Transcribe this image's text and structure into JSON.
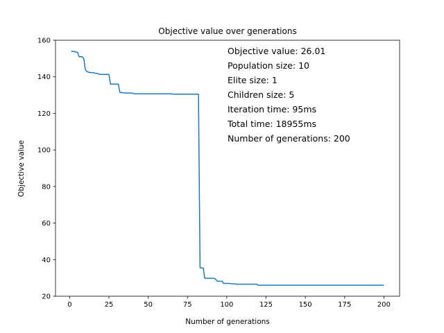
{
  "chart_data": {
    "type": "line",
    "title": "Objective value over generations",
    "xlabel": "Number of generations",
    "ylabel": "Objective value",
    "xlim": [
      -9,
      210
    ],
    "ylim": [
      20,
      160
    ],
    "xticks": [
      0,
      25,
      50,
      75,
      100,
      125,
      150,
      175,
      200
    ],
    "yticks": [
      20,
      40,
      60,
      80,
      100,
      120,
      140,
      160
    ],
    "grid": false,
    "series": [
      {
        "color": "#1f77b4",
        "points": [
          [
            1,
            153.9
          ],
          [
            3,
            153.9
          ],
          [
            4,
            153.5
          ],
          [
            5,
            153.5
          ],
          [
            6,
            151.0
          ],
          [
            8,
            151.0
          ],
          [
            9,
            150.0
          ],
          [
            10,
            144.0
          ],
          [
            11,
            142.8
          ],
          [
            13,
            142.3
          ],
          [
            15,
            142.3
          ],
          [
            16,
            142.0
          ],
          [
            18,
            141.8
          ],
          [
            19,
            141.3
          ],
          [
            25,
            141.3
          ],
          [
            26,
            136.0
          ],
          [
            31,
            136.0
          ],
          [
            32,
            131.5
          ],
          [
            35,
            131.1
          ],
          [
            40,
            131.1
          ],
          [
            41,
            130.7
          ],
          [
            65,
            130.7
          ],
          [
            66,
            130.5
          ],
          [
            82,
            130.5
          ],
          [
            83,
            35.5
          ],
          [
            85,
            35.5
          ],
          [
            86,
            29.8
          ],
          [
            92,
            29.8
          ],
          [
            93,
            29.2
          ],
          [
            94,
            28.2
          ],
          [
            97,
            28.2
          ],
          [
            98,
            27.0
          ],
          [
            102,
            27.0
          ],
          [
            103,
            26.8
          ],
          [
            105,
            26.8
          ],
          [
            106,
            26.6
          ],
          [
            119,
            26.6
          ],
          [
            120,
            26.01
          ],
          [
            200,
            26.01
          ]
        ]
      }
    ],
    "annotations": [
      "Objective value: 26.01",
      "Population size: 10",
      "Elite size: 1",
      "Children size: 5",
      "Iteration time: 95ms",
      "Total time: 18955ms",
      "Number of generations: 200"
    ]
  }
}
